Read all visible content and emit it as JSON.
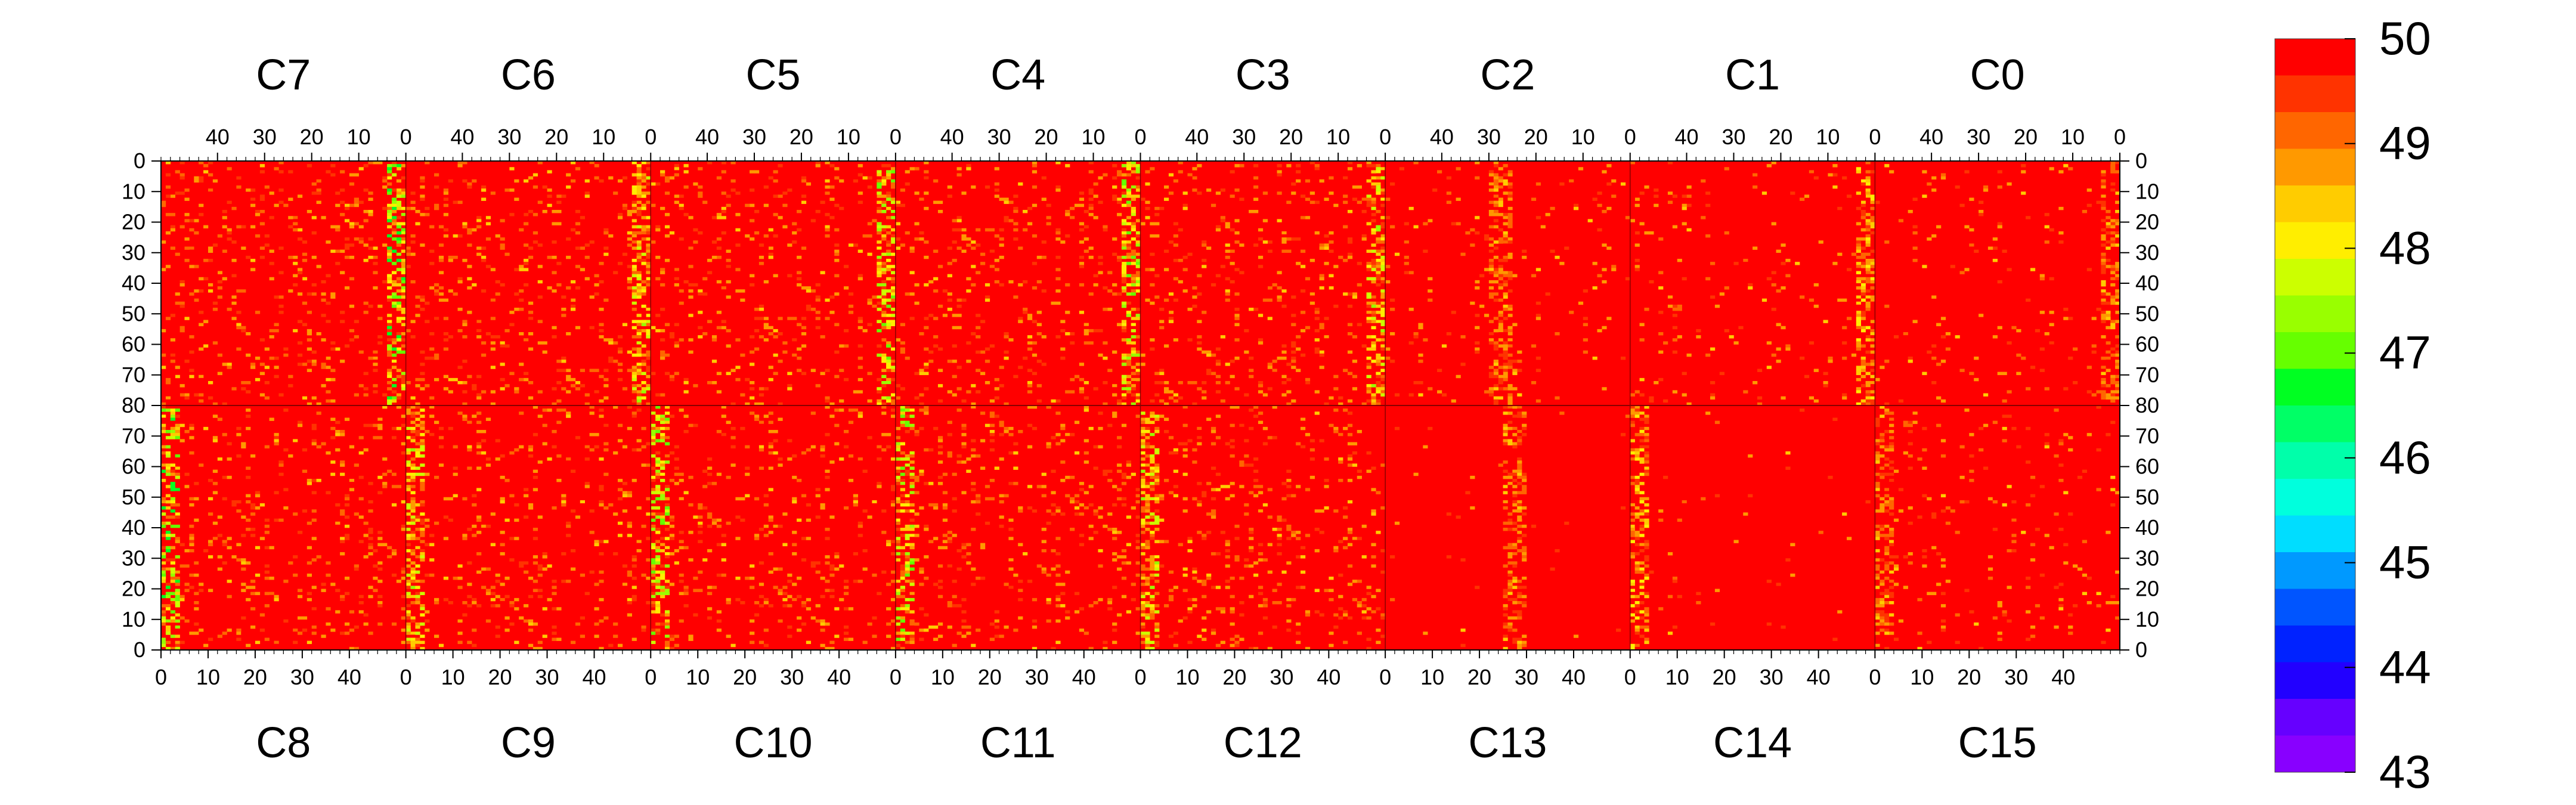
{
  "chart_data": {
    "type": "heatmap",
    "top_chips": [
      "C7",
      "C6",
      "C5",
      "C4",
      "C3",
      "C2",
      "C1",
      "C0"
    ],
    "bottom_chips": [
      "C8",
      "C9",
      "C10",
      "C11",
      "C12",
      "C13",
      "C14",
      "C15"
    ],
    "x_ticks_top": [
      "40",
      "30",
      "20",
      "10",
      "0"
    ],
    "x_ticks_bottom": [
      "0",
      "10",
      "20",
      "30",
      "40"
    ],
    "y_ticks": [
      "0",
      "10",
      "20",
      "30",
      "40",
      "50",
      "60",
      "70",
      "80",
      "70",
      "60",
      "50",
      "40",
      "30",
      "20",
      "10",
      "0"
    ],
    "columns_per_chip": 52,
    "rows_per_half": 80,
    "zlim": [
      43,
      50
    ],
    "colorbar_ticks": [
      "50",
      "49",
      "48",
      "47",
      "46",
      "45",
      "44",
      "43"
    ],
    "colorbar_colors": [
      "#ff0000",
      "#ff3300",
      "#ff6600",
      "#ff9900",
      "#ffcc00",
      "#ffee00",
      "#ccff00",
      "#99ff00",
      "#66ff00",
      "#00ff22",
      "#00ff66",
      "#00ffaa",
      "#00ffdd",
      "#00ddff",
      "#0099ff",
      "#0055ff",
      "#0022ff",
      "#2200ff",
      "#6600ff",
      "#8800ff"
    ],
    "background_value": 50,
    "hot_columns_per_chip": [
      {
        "chip": "C7",
        "column": 1,
        "min_value": 46.5
      },
      {
        "chip": "C6",
        "column": 1,
        "min_value": 47.5
      },
      {
        "chip": "C5",
        "column": 1,
        "min_value": 47.0
      },
      {
        "chip": "C4",
        "column": 1,
        "min_value": 47.0
      },
      {
        "chip": "C3",
        "column": 1,
        "min_value": 47.5
      },
      {
        "chip": "C2",
        "column": 27,
        "min_value": 48.5
      },
      {
        "chip": "C1",
        "column": 1,
        "min_value": 48.0
      },
      {
        "chip": "C0",
        "column": 1,
        "min_value": 48.5
      }
    ]
  }
}
